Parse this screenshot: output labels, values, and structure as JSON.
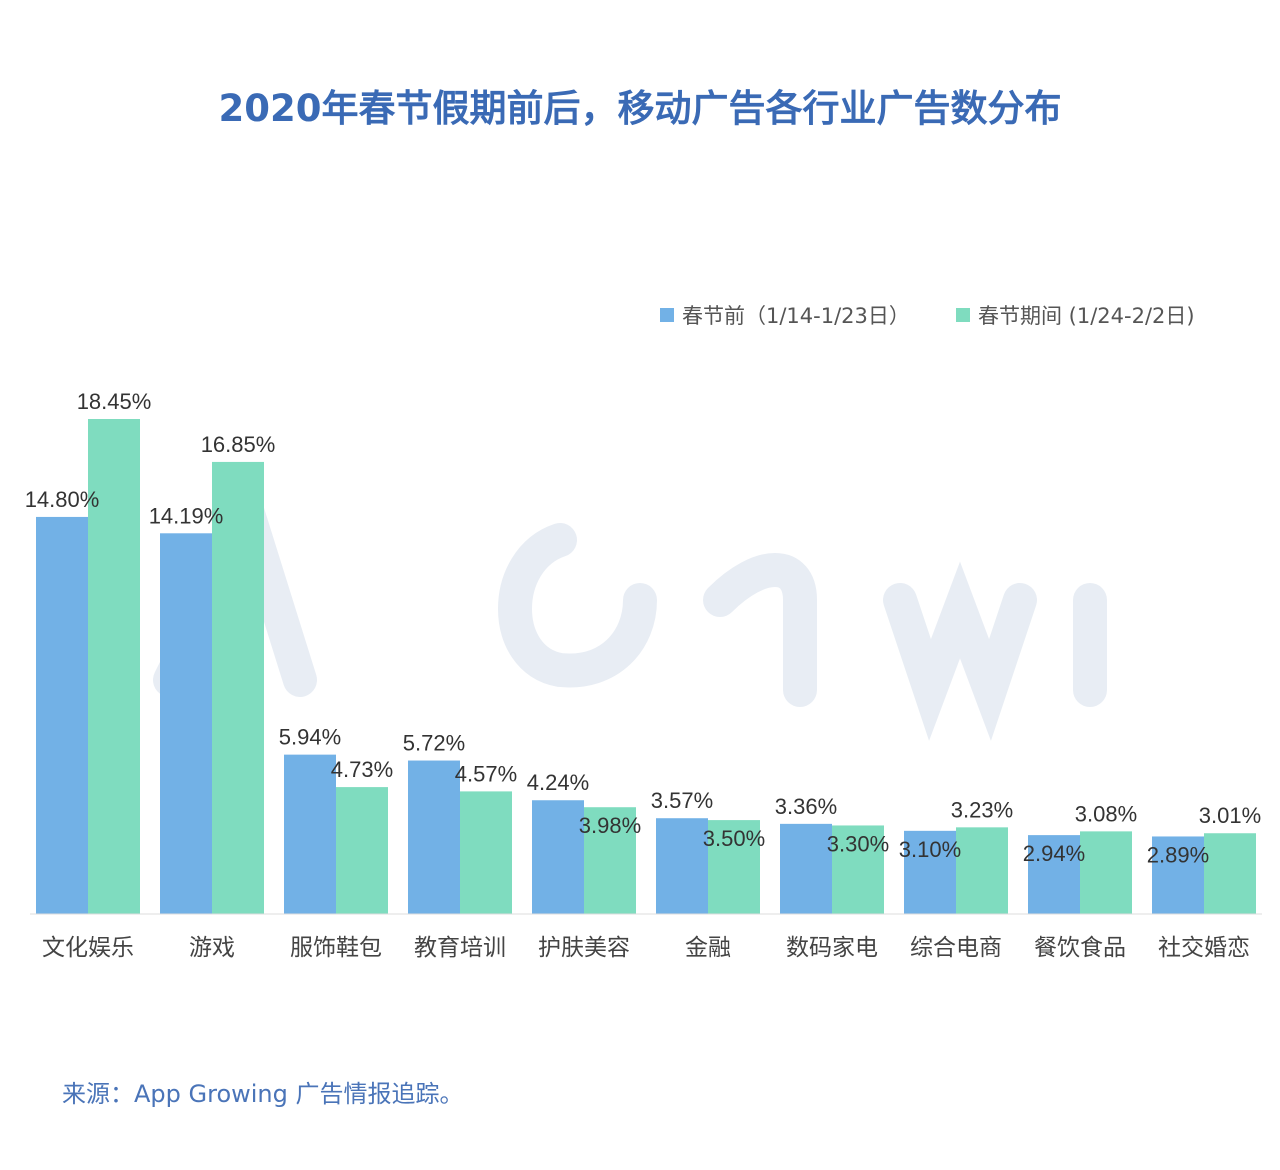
{
  "title": "2020年春节假期前后，移动广告各行业广告数分布",
  "source": "来源：App Growing 广告情报追踪。",
  "watermark": "App Growing",
  "chart_data": {
    "type": "bar",
    "title": "2020年春节假期前后，移动广告各行业广告数分布",
    "categories": [
      "文化娱乐",
      "游戏",
      "服饰鞋包",
      "教育培训",
      "护肤美容",
      "金融",
      "数码家电",
      "综合电商",
      "餐饮食品",
      "社交婚恋"
    ],
    "series": [
      {
        "name": "春节前（1/14-1/23日）",
        "color": "#72b1e6",
        "values": [
          14.8,
          14.19,
          5.94,
          5.72,
          4.24,
          3.57,
          3.36,
          3.1,
          2.94,
          2.89
        ]
      },
      {
        "name": "春节期间 (1/24-2/2日)",
        "color": "#7fdcbf",
        "values": [
          18.45,
          16.85,
          4.73,
          4.57,
          3.98,
          3.5,
          3.3,
          3.23,
          3.08,
          3.01
        ]
      }
    ],
    "value_format": "%",
    "ylim": [
      0,
      18.45
    ],
    "grid": false,
    "legend": "top-right",
    "xlabel": "",
    "ylabel": ""
  }
}
